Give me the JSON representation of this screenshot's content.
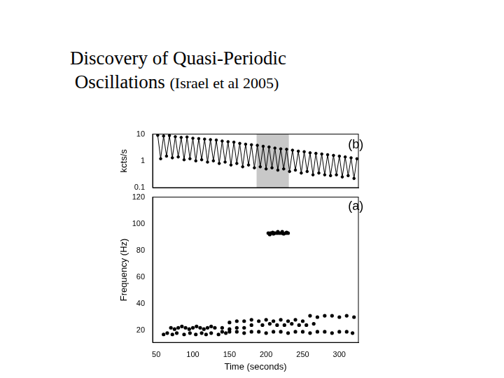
{
  "title": {
    "line1": "Discovery of Quasi-Periodic",
    "line2": "Oscillations",
    "citation": "(Israel et al 2005)"
  },
  "chart_data": [
    {
      "type": "line",
      "y_label": "kcts/s",
      "log": "y",
      "xlim": [
        45,
        326
      ],
      "ylim": [
        0.1,
        10
      ],
      "yticks": [
        0.1,
        1,
        10
      ],
      "tick_labels": "y",
      "color": "#000000",
      "marker": "circle",
      "line_style": "solid",
      "shaded_x": [
        187,
        231
      ],
      "annotations": [
        {
          "text": "(b)",
          "x": 312,
          "y": 4
        }
      ],
      "x": [
        52,
        56,
        60,
        64,
        68,
        72,
        76,
        80,
        84,
        88,
        92,
        96,
        100,
        104,
        108,
        112,
        116,
        120,
        124,
        128,
        132,
        136,
        140,
        144,
        148,
        152,
        156,
        160,
        164,
        168,
        172,
        176,
        180,
        184,
        188,
        192,
        196,
        200,
        204,
        208,
        212,
        216,
        220,
        224,
        228,
        232,
        236,
        240,
        244,
        248,
        252,
        256,
        260,
        264,
        268,
        272,
        276,
        280,
        284,
        288,
        292,
        296,
        300,
        304,
        308,
        312,
        316,
        320,
        324
      ],
      "values": [
        9,
        1.2,
        8.5,
        1.5,
        8.8,
        1.3,
        8,
        1.4,
        7.5,
        1.1,
        7.8,
        1.2,
        7,
        1.0,
        6.8,
        1.1,
        6.5,
        0.9,
        6.2,
        1.0,
        6,
        0.8,
        5.5,
        0.9,
        5.2,
        0.7,
        5,
        0.8,
        4.5,
        0.6,
        4.2,
        0.7,
        4,
        0.55,
        3.8,
        0.6,
        3.5,
        0.5,
        3.3,
        0.55,
        3,
        0.45,
        2.8,
        0.5,
        2.7,
        0.4,
        2.5,
        0.45,
        2.3,
        0.35,
        2.2,
        0.4,
        2,
        0.3,
        1.9,
        0.35,
        1.8,
        0.3,
        1.7,
        0.28,
        1.6,
        0.3,
        1.5,
        0.25,
        1.4,
        0.28,
        1.3,
        0.22,
        1.2
      ]
    },
    {
      "type": "scatter",
      "x_label": "Time (seconds)",
      "y_label": "Frequency (Hz)",
      "xlim": [
        45,
        326
      ],
      "ylim": [
        11,
        120
      ],
      "xticks": [
        50,
        100,
        150,
        200,
        250,
        300
      ],
      "yticks": [
        20,
        40,
        60,
        80,
        100,
        120
      ],
      "color": "#000000",
      "marker": "circle",
      "annotations": [
        {
          "text": "(a)",
          "x": 312,
          "y": 113
        }
      ],
      "x": [
        203,
        206,
        209,
        212,
        215,
        218,
        221,
        224,
        227,
        230,
        205,
        210,
        216,
        222,
        228,
        70,
        75,
        80,
        85,
        90,
        95,
        100,
        105,
        110,
        115,
        120,
        125,
        130,
        140,
        150,
        160,
        170,
        140,
        145,
        150,
        160,
        170,
        180,
        190,
        200,
        210,
        220,
        230,
        240,
        250,
        260,
        270,
        280,
        290,
        300,
        310,
        318,
        150,
        160,
        170,
        180,
        190,
        200,
        210,
        220,
        230,
        240,
        250,
        260,
        270,
        280,
        290,
        300,
        310,
        320,
        60,
        65,
        72,
        78,
        88,
        96,
        104,
        112,
        118,
        125,
        135,
        180,
        195,
        205,
        215,
        225,
        235,
        245,
        255,
        265
      ],
      "values": [
        93,
        93,
        93.5,
        93,
        93,
        93,
        93,
        92.5,
        93,
        93,
        92,
        92.5,
        94,
        94,
        93.5,
        22,
        21,
        22,
        23,
        22,
        21,
        22,
        23,
        22,
        21,
        22,
        23,
        22,
        22,
        21,
        22,
        22,
        19,
        18,
        19,
        19,
        18,
        19,
        19,
        18,
        19,
        19,
        18,
        19,
        19,
        18,
        19,
        19,
        18,
        19,
        19,
        18,
        26,
        27,
        27,
        28,
        27,
        28,
        27,
        28,
        27,
        28,
        27,
        31,
        30,
        31,
        31,
        30,
        31,
        30,
        17,
        18,
        17,
        18,
        17,
        18,
        17,
        18,
        17,
        18,
        17,
        24,
        24,
        25,
        24,
        24,
        25,
        24,
        24,
        25
      ]
    }
  ]
}
